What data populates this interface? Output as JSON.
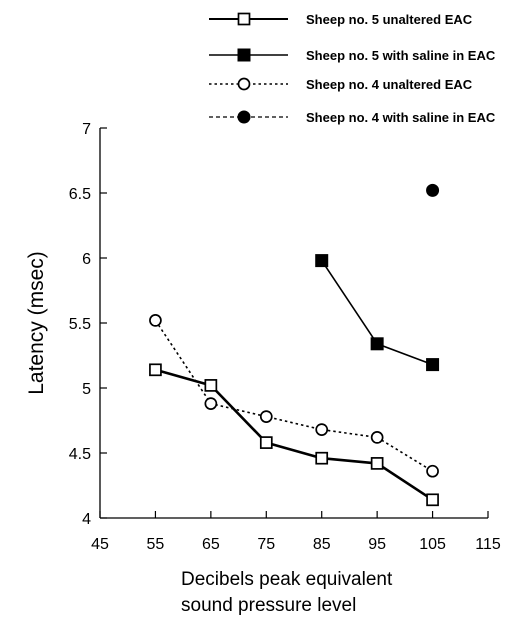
{
  "chart_data": {
    "type": "line",
    "xlabel_lines": [
      "Decibels peak equivalent",
      "sound pressure level"
    ],
    "ylabel": "Latency (msec)",
    "xlim": [
      45,
      115
    ],
    "ylim": [
      4,
      7
    ],
    "xticks": [
      45,
      55,
      65,
      75,
      85,
      95,
      105,
      115
    ],
    "yticks": [
      4,
      4.5,
      5,
      5.5,
      6,
      6.5,
      7
    ],
    "ytick_labels": [
      "4",
      "4.5",
      "5",
      "5.5",
      "6",
      "6.5",
      "7"
    ],
    "grid": false,
    "legend_position": "top-right",
    "series": [
      {
        "name": "Sheep no. 5 unaltered EAC",
        "line_style": "solid-thick",
        "marker": "open-square",
        "x": [
          55,
          65,
          75,
          85,
          95,
          105
        ],
        "y": [
          5.14,
          5.02,
          4.58,
          4.46,
          4.42,
          4.14
        ]
      },
      {
        "name": "Sheep no. 5 with saline in EAC",
        "line_style": "solid",
        "marker": "filled-square",
        "x": [
          85,
          95,
          105
        ],
        "y": [
          5.98,
          5.34,
          5.18
        ]
      },
      {
        "name": "Sheep no. 4 unaltered EAC",
        "line_style": "dotted",
        "marker": "open-circle",
        "x": [
          55,
          65,
          75,
          85,
          95,
          105
        ],
        "y": [
          5.52,
          4.88,
          4.78,
          4.68,
          4.62,
          4.36
        ]
      },
      {
        "name": "Sheep no. 4 with saline in EAC",
        "line_style": "dashed",
        "marker": "filled-circle",
        "x": [
          105
        ],
        "y": [
          6.52
        ]
      }
    ]
  }
}
